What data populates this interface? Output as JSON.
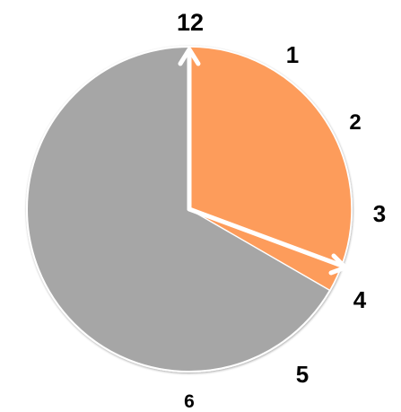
{
  "diagram": {
    "type": "clock-fraction",
    "hour_labels": [
      "12",
      "1",
      "2",
      "3",
      "4",
      "5",
      "6"
    ],
    "shaded_fraction": 0.3333,
    "shaded_from_hour": 12,
    "shaded_to_hour": 4,
    "colors": {
      "shaded_sector": "#fd9c5b",
      "unshaded_sector": "#a6a6a6",
      "hands": "#ffffff",
      "labels": "#000000"
    }
  }
}
